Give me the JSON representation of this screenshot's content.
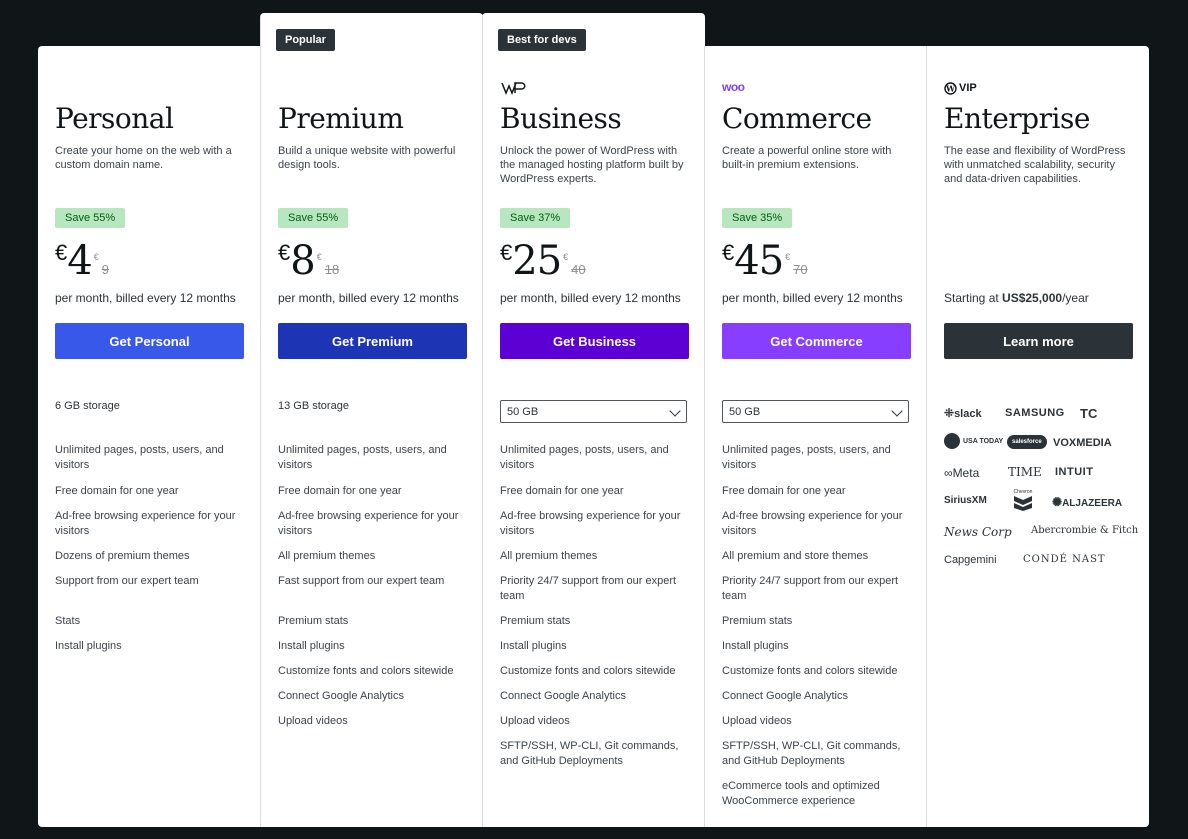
{
  "plans": [
    {
      "name": "Personal",
      "desc": "Create your home on the web with a custom domain name.",
      "save": "Save 55%",
      "currency": "€",
      "price": "4",
      "old_currency": "€",
      "old_price": "9",
      "billing": "per month, billed every 12 months",
      "cta": "Get Personal",
      "cta_color": "#3858e9",
      "storage": "6 GB storage",
      "features": [
        "Unlimited pages, posts, users, and visitors",
        "Free domain for one year",
        "Ad-free browsing experience for your visitors",
        "Dozens of premium themes",
        "Support from our expert team",
        "Stats",
        "Install plugins"
      ]
    },
    {
      "badge": "Popular",
      "name": "Premium",
      "desc": "Build a unique website with powerful design tools.",
      "save": "Save 55%",
      "currency": "€",
      "price": "8",
      "old_currency": "€",
      "old_price": "18",
      "billing": "per month, billed every 12 months",
      "cta": "Get Premium",
      "cta_color": "#1d35b4",
      "storage": "13 GB storage",
      "features": [
        "Unlimited pages, posts, users, and visitors",
        "Free domain for one year",
        "Ad-free browsing experience for your visitors",
        "All premium themes",
        "Fast support from our expert team",
        "Premium stats",
        "Install plugins",
        "Customize fonts and colors sitewide",
        "Connect Google Analytics",
        "Upload videos"
      ]
    },
    {
      "badge": "Best for devs",
      "logo": "WP",
      "name": "Business",
      "desc": "Unlock the power of WordPress with the managed hosting platform built by WordPress experts.",
      "save": "Save 37%",
      "currency": "€",
      "price": "25",
      "old_currency": "€",
      "old_price": "40",
      "billing": "per month, billed every 12 months",
      "cta": "Get Business",
      "cta_color": "#5c00d3",
      "storage_select": "50 GB",
      "features": [
        "Unlimited pages, posts, users, and visitors",
        "Free domain for one year",
        "Ad-free browsing experience for your visitors",
        "All premium themes",
        "Priority 24/7 support from our expert team",
        "Premium stats",
        "Install plugins",
        "Customize fonts and colors sitewide",
        "Connect Google Analytics",
        "Upload videos",
        "SFTP/SSH, WP-CLI, Git commands, and GitHub Deployments"
      ]
    },
    {
      "logo": "woo",
      "name": "Commerce",
      "desc": "Create a powerful online store with built-in premium extensions.",
      "save": "Save 35%",
      "currency": "€",
      "price": "45",
      "old_currency": "€",
      "old_price": "70",
      "billing": "per month, billed every 12 months",
      "cta": "Get Commerce",
      "cta_color": "#873eff",
      "storage_select": "50 GB",
      "features": [
        "Unlimited pages, posts, users, and visitors",
        "Free domain for one year",
        "Ad-free browsing experience for your visitors",
        "All premium and store themes",
        "Priority 24/7 support from our expert team",
        "Premium stats",
        "Install plugins",
        "Customize fonts and colors sitewide",
        "Connect Google Analytics",
        "Upload videos",
        "SFTP/SSH, WP-CLI, Git commands, and GitHub Deployments",
        "eCommerce tools and optimized WooCommerce experience"
      ]
    },
    {
      "logo": "VIP",
      "name": "Enterprise",
      "desc": "The ease and flexibility of WordPress with unmatched scalability, security and data-driven capabilities.",
      "starting_prefix": "Starting at ",
      "starting_price": "US$25,000",
      "starting_suffix": "/year",
      "cta": "Learn more",
      "cta_color": "#2c3338",
      "client_logos": [
        "slack",
        "SAMSUNG",
        "TC",
        "USA TODAY",
        "salesforce",
        "VOXMEDIA",
        "Meta",
        "TIME",
        "INTUIT",
        "SiriusXM",
        "Chevron",
        "ALJAZEERA",
        "News Corp",
        "Abercrombie & Fitch",
        "Capgemini",
        "CONDÉ NAST"
      ]
    }
  ]
}
